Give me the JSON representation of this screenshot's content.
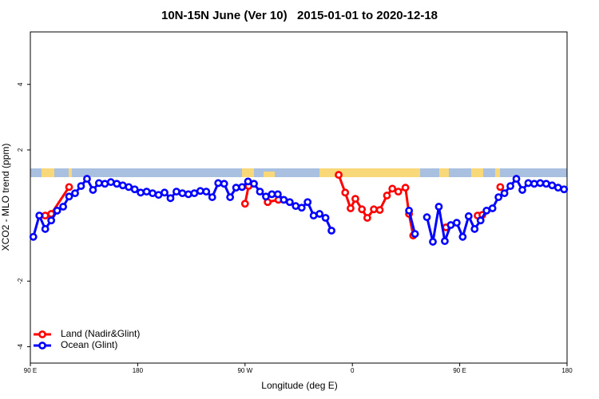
{
  "chart_data": {
    "type": "line",
    "title": "10N-15N June (Ver 10)   2015-01-01 to 2020-12-18",
    "xlabel": "Longitude (deg E)",
    "ylabel": "XCO2 - MLO trend (ppm)",
    "xlim": [
      90,
      540
    ],
    "xticks": [
      {
        "value": 90,
        "label": "90 E"
      },
      180,
      {
        "value": 270,
        "label": "90 W"
      },
      {
        "value": 360,
        "label": "0"
      },
      {
        "value": 450,
        "label": "90 E"
      },
      {
        "value": 540,
        "label": "180"
      }
    ],
    "ylim": [
      -4.5,
      5.6
    ],
    "yticks": [
      -4,
      -2,
      2,
      4
    ],
    "legend": "bottomleft",
    "series": [
      {
        "name": "Land (Nadir&Glint)",
        "color": "#ff0000",
        "x": [
          102.5,
          107.5,
          122.5,
          null,
          270,
          273,
          null,
          289,
          298,
          null,
          348.5,
          354,
          358.5,
          362.5,
          368,
          372.5,
          378,
          383,
          389,
          393.5,
          398.5,
          404.5,
          407.5,
          411,
          null,
          438.5,
          null,
          465,
          469,
          null,
          484
        ],
        "values": [
          0,
          0.05,
          0.87,
          null,
          0.36,
          0.9,
          null,
          0.41,
          0.48,
          null,
          1.24,
          0.7,
          0.22,
          0.51,
          0.19,
          -0.07,
          0.19,
          0.17,
          0.61,
          0.82,
          0.73,
          0.85,
          0.05,
          -0.61,
          null,
          -0.36,
          null,
          0,
          0.02,
          null,
          0.87
        ]
      },
      {
        "name": "Ocean (Glint)",
        "color": "#0000ff",
        "x": [
          92.5,
          97.5,
          102.5,
          107.5,
          112.5,
          117.5,
          122.5,
          127.5,
          132.5,
          137.5,
          142.5,
          147.5,
          152.5,
          157.5,
          162.5,
          167.5,
          172.5,
          177.5,
          182.5,
          187.5,
          192.5,
          197.5,
          202.5,
          207.5,
          212.5,
          217.5,
          222.5,
          227.5,
          232.5,
          237.5,
          242.5,
          247.5,
          252.5,
          257.5,
          262.5,
          267.5,
          272.5,
          277.5,
          282.5,
          287.5,
          292.5,
          297.5,
          302.5,
          307.5,
          312.5,
          317.5,
          322.5,
          327.5,
          332.5,
          337.5,
          342.5,
          null,
          407.5,
          412.5,
          null,
          422.5,
          427.5,
          432.5,
          437.5,
          442.5,
          447.5,
          452.5,
          457.5,
          462.5,
          467.5,
          472.5,
          477.5,
          482.5,
          487.5,
          492.5,
          497.5,
          502.5,
          507.5,
          512.5,
          517.5,
          522.5,
          527.5,
          532.5,
          537.5
        ],
        "values": [
          -0.65,
          0,
          -0.41,
          -0.15,
          0.15,
          0.27,
          0.58,
          0.68,
          0.9,
          1.12,
          0.78,
          0.99,
          0.97,
          1.02,
          0.97,
          0.92,
          0.87,
          0.8,
          0.7,
          0.73,
          0.68,
          0.63,
          0.7,
          0.53,
          0.73,
          0.68,
          0.65,
          0.68,
          0.75,
          0.73,
          0.56,
          0.99,
          0.97,
          0.56,
          0.85,
          0.87,
          1.04,
          0.97,
          0.73,
          0.58,
          0.65,
          0.65,
          0.48,
          0.41,
          0.29,
          0.24,
          0.41,
          0,
          0.05,
          -0.07,
          -0.46,
          null,
          0.15,
          -0.56,
          null,
          -0.05,
          -0.8,
          0.27,
          -0.78,
          -0.29,
          -0.22,
          -0.65,
          -0.02,
          -0.41,
          -0.15,
          0.15,
          0.22,
          0.56,
          0.68,
          0.9,
          1.12,
          0.78,
          0.99,
          0.97,
          0.99,
          0.97,
          0.92,
          0.85,
          0.8
        ]
      }
    ]
  }
}
